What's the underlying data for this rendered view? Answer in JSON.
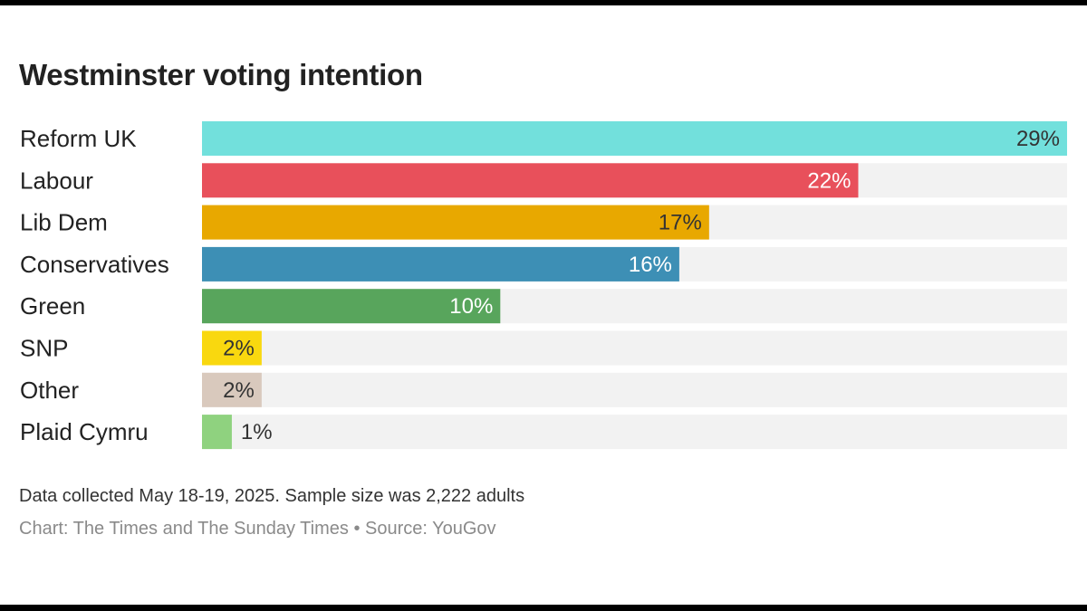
{
  "chart_data": {
    "type": "bar",
    "orientation": "horizontal",
    "title": "Westminster voting intention",
    "categories": [
      "Reform UK",
      "Labour",
      "Lib Dem",
      "Conservatives",
      "Green",
      "SNP",
      "Other",
      "Plaid Cymru"
    ],
    "values": [
      29,
      22,
      17,
      16,
      10,
      2,
      2,
      1
    ],
    "value_labels": [
      "29%",
      "22%",
      "17%",
      "16%",
      "10%",
      "2%",
      "2%",
      "1%"
    ],
    "colors": [
      "#72e0dc",
      "#e8505b",
      "#e8a800",
      "#3d8fb5",
      "#58a55c",
      "#f9d80f",
      "#d9c9bd",
      "#8fd27f"
    ],
    "value_label_colors": [
      "#333333",
      "#ffffff",
      "#333333",
      "#ffffff",
      "#ffffff",
      "#333333",
      "#333333",
      "#333333"
    ],
    "track_color": "#f2f2f2",
    "xlim": [
      0,
      29
    ],
    "grid": false,
    "legend": "none",
    "xlabel": "",
    "ylabel": ""
  },
  "footnote": "Data collected May 18-19, 2025. Sample size was 2,222 adults",
  "credit": "Chart: The Times and The Sunday Times • Source: YouGov"
}
